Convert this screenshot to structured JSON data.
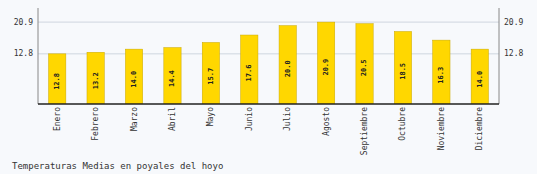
{
  "chart_data": {
    "type": "bar",
    "title": "Temperaturas Medias en poyales del hoyo",
    "categories": [
      "Enero",
      "Febrero",
      "Marzo",
      "Abril",
      "Mayo",
      "Junio",
      "Julio",
      "Agosto",
      "Septiembre",
      "Octubre",
      "Noviembre",
      "Diciembre"
    ],
    "values": [
      12.8,
      13.2,
      14.0,
      14.4,
      15.7,
      17.6,
      20.0,
      20.9,
      20.5,
      18.5,
      16.3,
      14.0
    ],
    "value_labels": [
      "12.8",
      "13.2",
      "14.0",
      "14.4",
      "15.7",
      "17.6",
      "20.0",
      "20.9",
      "20.5",
      "18.5",
      "16.3",
      "14.0"
    ],
    "data_labels": true,
    "color": "#FFD700",
    "ylim": [
      0,
      24.5
    ],
    "yticks": [
      12.8,
      20.9
    ],
    "y2lim": [
      0,
      24.5
    ],
    "y2ticks": [
      12.8,
      20.9
    ],
    "grid": true
  }
}
